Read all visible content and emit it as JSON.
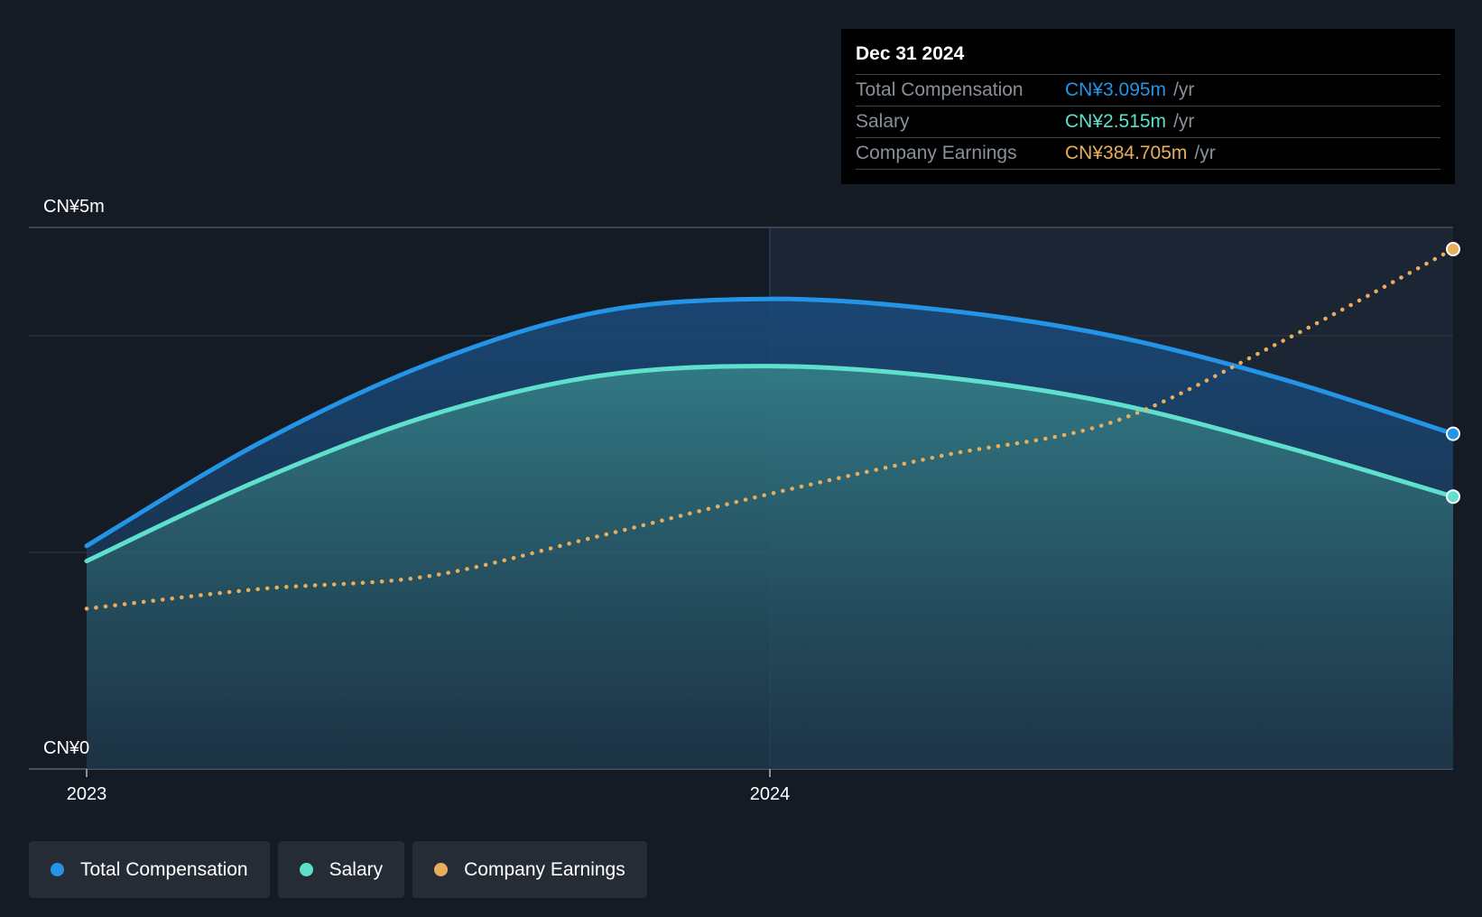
{
  "chart_data": {
    "type": "area",
    "y_axis": {
      "top_label": "CN¥5m",
      "bottom_label": "CN¥0",
      "ylim": [
        0,
        5.0
      ]
    },
    "x_axis": {
      "ticks": [
        {
          "value": 2023.0,
          "label": "2023"
        },
        {
          "value": 2024.0,
          "label": "2024"
        }
      ],
      "xlim": [
        2023.0,
        2025.0
      ]
    },
    "grid": true,
    "series": [
      {
        "name": "Total Compensation",
        "color": "#2394e6",
        "style": "solid",
        "fill": true,
        "points": [
          [
            2023.0,
            2.06
          ],
          [
            2023.25,
            3.0
          ],
          [
            2023.5,
            3.74
          ],
          [
            2023.75,
            4.22
          ],
          [
            2024.0,
            4.34
          ],
          [
            2024.25,
            4.24
          ],
          [
            2024.5,
            4.0
          ],
          [
            2024.75,
            3.6
          ],
          [
            2025.0,
            3.095
          ]
        ]
      },
      {
        "name": "Salary",
        "color": "#5fe0cd",
        "style": "solid",
        "fill": true,
        "points": [
          [
            2023.0,
            1.92
          ],
          [
            2023.25,
            2.66
          ],
          [
            2023.5,
            3.26
          ],
          [
            2023.75,
            3.63
          ],
          [
            2024.0,
            3.72
          ],
          [
            2024.25,
            3.62
          ],
          [
            2024.5,
            3.38
          ],
          [
            2024.75,
            2.98
          ],
          [
            2025.0,
            2.515
          ]
        ]
      },
      {
        "name": "Company Earnings",
        "color": "#e8ae5c",
        "style": "dotted",
        "fill": false,
        "scaled_to_axis": true,
        "points": [
          [
            2023.0,
            1.48
          ],
          [
            2023.25,
            1.66
          ],
          [
            2023.5,
            1.78
          ],
          [
            2023.75,
            2.15
          ],
          [
            2024.0,
            2.54
          ],
          [
            2024.25,
            2.89
          ],
          [
            2024.5,
            3.2
          ],
          [
            2024.75,
            3.95
          ],
          [
            2025.0,
            4.8
          ]
        ]
      }
    ],
    "tooltip": {
      "date": "Dec 31 2024",
      "rows": [
        {
          "label": "Total Compensation",
          "value": "CN¥3.095m",
          "unit": "/yr",
          "color": "#2394e6"
        },
        {
          "label": "Salary",
          "value": "CN¥2.515m",
          "unit": "/yr",
          "color": "#5fe0cd"
        },
        {
          "label": "Company Earnings",
          "value": "CN¥384.705m",
          "unit": "/yr",
          "color": "#e8ae5c"
        }
      ]
    },
    "legend": [
      {
        "label": "Total Compensation",
        "color": "#2394e6"
      },
      {
        "label": "Salary",
        "color": "#5fe0cd"
      },
      {
        "label": "Company Earnings",
        "color": "#e8ae5c"
      }
    ],
    "legend_placement": "bottom-left"
  }
}
